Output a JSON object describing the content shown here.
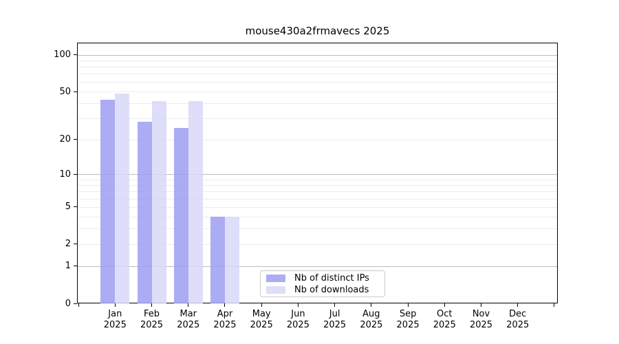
{
  "chart_data": {
    "type": "bar",
    "title": "mouse430a2frmavecs 2025",
    "year": "2025",
    "categories": [
      "Jan",
      "Feb",
      "Mar",
      "Apr",
      "May",
      "Jun",
      "Jul",
      "Aug",
      "Sep",
      "Oct",
      "Nov",
      "Dec"
    ],
    "series": [
      {
        "name": "Nb of distinct IPs",
        "color": "#9d9df2",
        "values": [
          43,
          28,
          25,
          4,
          0,
          0,
          0,
          0,
          0,
          0,
          0,
          0
        ]
      },
      {
        "name": "Nb of downloads",
        "color": "#d8d8f9",
        "values": [
          48,
          42,
          42,
          4,
          0,
          0,
          0,
          0,
          0,
          0,
          0,
          0
        ]
      }
    ],
    "bar_opacity": 0.85,
    "y_axis": {
      "scale": "log1p",
      "ticks": [
        0,
        1,
        2,
        5,
        10,
        20,
        50,
        100
      ],
      "minor_gridlines": [
        2,
        3,
        4,
        5,
        6,
        7,
        8,
        9,
        20,
        30,
        40,
        50,
        60,
        70,
        80,
        90
      ],
      "major_gridlines": [
        1,
        10,
        100
      ],
      "ymax": 125
    },
    "legend_position": "bottom-center",
    "grid": true
  }
}
